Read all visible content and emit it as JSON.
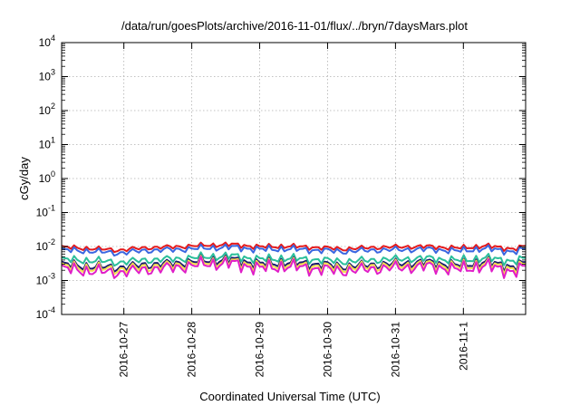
{
  "chart_data": {
    "type": "line",
    "title": "/data/run/goesPlots/archive/2016-11-01/flux/../bryn/7daysMars.plot",
    "xlabel": "Coordinated Universal Time (UTC)",
    "ylabel": "cGy/day",
    "yscale": "log",
    "ylim": [
      0.0001,
      10000
    ],
    "xlim": [
      "2016-10-26T02:00",
      "2016-11-01T22:00"
    ],
    "grid": true,
    "legend": "none",
    "y_ticks": [
      {
        "value": 0.0001,
        "base": "10",
        "exp": "-4"
      },
      {
        "value": 0.001,
        "base": "10",
        "exp": "-3"
      },
      {
        "value": 0.01,
        "base": "10",
        "exp": "-2"
      },
      {
        "value": 0.1,
        "base": "10",
        "exp": "-1"
      },
      {
        "value": 1,
        "base": "10",
        "exp": "0"
      },
      {
        "value": 10,
        "base": "10",
        "exp": "1"
      },
      {
        "value": 100,
        "base": "10",
        "exp": "2"
      },
      {
        "value": 1000,
        "base": "10",
        "exp": "3"
      },
      {
        "value": 10000,
        "base": "10",
        "exp": "4"
      }
    ],
    "x_ticks": [
      {
        "value": "2016-10-27",
        "label": "2016-10-27"
      },
      {
        "value": "2016-10-28",
        "label": "2016-10-28"
      },
      {
        "value": "2016-10-29",
        "label": "2016-10-29"
      },
      {
        "value": "2016-10-30",
        "label": "2016-10-30"
      },
      {
        "value": "2016-10-31",
        "label": "2016-10-31"
      },
      {
        "value": "2016-11-01",
        "label": "2016-11-1"
      }
    ],
    "series_x": [
      "2016-10-26T02:00",
      "2016-10-26T12:00",
      "2016-10-26T22:00",
      "2016-10-27T08:00",
      "2016-10-27T18:00",
      "2016-10-28T04:00",
      "2016-10-28T14:00",
      "2016-10-29T00:00",
      "2016-10-29T10:00",
      "2016-10-29T20:00",
      "2016-10-30T06:00",
      "2016-10-30T16:00",
      "2016-10-31T02:00",
      "2016-10-31T12:00",
      "2016-10-31T22:00",
      "2016-11-01T08:00",
      "2016-11-01T18:00",
      "2016-11-01T22:00"
    ],
    "series": [
      {
        "color": "#e41a1c",
        "values": [
          0.0095,
          0.0088,
          0.0078,
          0.0092,
          0.0098,
          0.0108,
          0.0115,
          0.0098,
          0.0102,
          0.0094,
          0.0085,
          0.0094,
          0.0098,
          0.01,
          0.009,
          0.0104,
          0.0085,
          0.0102
        ]
      },
      {
        "color": "#3a66e0",
        "values": [
          0.0079,
          0.0073,
          0.0064,
          0.0076,
          0.0081,
          0.0089,
          0.0096,
          0.0082,
          0.0085,
          0.0078,
          0.0071,
          0.0078,
          0.0081,
          0.0083,
          0.0074,
          0.0087,
          0.007,
          0.0085
        ]
      },
      {
        "color": "#2bbf9a",
        "values": [
          0.0041,
          0.0039,
          0.0034,
          0.004,
          0.0043,
          0.0049,
          0.0053,
          0.0042,
          0.0045,
          0.0041,
          0.0036,
          0.004,
          0.0043,
          0.0045,
          0.0039,
          0.0046,
          0.0037,
          0.0044
        ]
      },
      {
        "color": "#1a1a6e",
        "values": [
          0.003,
          0.0026,
          0.0024,
          0.0029,
          0.0032,
          0.0038,
          0.0041,
          0.0031,
          0.0034,
          0.003,
          0.0026,
          0.0029,
          0.0032,
          0.0034,
          0.0028,
          0.0035,
          0.0025,
          0.0033
        ]
      },
      {
        "color": "#f4e04d",
        "values": [
          0.0026,
          0.0023,
          0.0021,
          0.0025,
          0.0028,
          0.0034,
          0.0036,
          0.0027,
          0.003,
          0.0026,
          0.0023,
          0.0026,
          0.0028,
          0.003,
          0.0025,
          0.0031,
          0.0022,
          0.0029
        ]
      },
      {
        "color": "#e01ec8",
        "values": [
          0.0022,
          0.0019,
          0.0017,
          0.0021,
          0.0024,
          0.003,
          0.0032,
          0.0023,
          0.0026,
          0.0022,
          0.0019,
          0.0022,
          0.0024,
          0.0026,
          0.0021,
          0.0027,
          0.0018,
          0.0025
        ]
      }
    ]
  }
}
